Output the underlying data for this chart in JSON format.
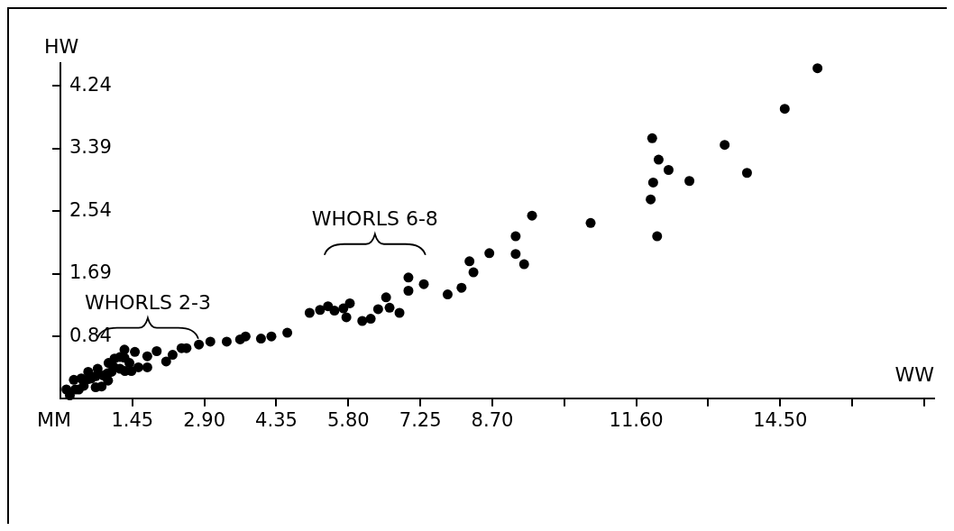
{
  "chart_data": {
    "type": "scatter",
    "xlabel": "WW",
    "ylabel": "HW",
    "color": "#000000",
    "marker": "circle",
    "grid": false,
    "legend": false,
    "xlim": [
      0,
      17.6
    ],
    "ylim": [
      0,
      4.55
    ],
    "xticks": [
      {
        "value": 1.45,
        "label": "1.45"
      },
      {
        "value": 2.9,
        "label": "2.90"
      },
      {
        "value": 4.35,
        "label": "4.35"
      },
      {
        "value": 5.8,
        "label": "5.80"
      },
      {
        "value": 7.25,
        "label": "7.25"
      },
      {
        "value": 8.7,
        "label": "8.70"
      },
      {
        "value": 10.15,
        "label": null
      },
      {
        "value": 11.6,
        "label": "11.60"
      },
      {
        "value": 13.05,
        "label": null
      },
      {
        "value": 14.5,
        "label": "14.50"
      },
      {
        "value": 15.95,
        "label": null
      },
      {
        "value": 17.4,
        "label": null
      }
    ],
    "yticks": [
      0.84,
      1.69,
      2.54,
      3.39,
      4.24
    ],
    "x": [
      0.12,
      0.19,
      0.27,
      0.3,
      0.37,
      0.42,
      0.47,
      0.56,
      0.56,
      0.62,
      0.71,
      0.71,
      0.75,
      0.83,
      0.86,
      0.96,
      0.95,
      0.97,
      1.03,
      1.08,
      1.09,
      1.2,
      1.2,
      1.29,
      1.29,
      1.3,
      1.39,
      1.43,
      1.5,
      1.57,
      1.75,
      1.75,
      1.94,
      2.13,
      2.26,
      2.44,
      2.54,
      2.79,
      3.02,
      3.35,
      3.62,
      3.73,
      4.04,
      4.25,
      4.57,
      5.02,
      5.23,
      5.39,
      5.52,
      5.7,
      5.83,
      5.76,
      6.08,
      6.25,
      6.4,
      6.56,
      6.63,
      6.83,
      7.01,
      7.01,
      7.32,
      7.8,
      8.08,
      8.32,
      8.24,
      8.64,
      9.17,
      9.17,
      9.34,
      9.5,
      10.68,
      11.92,
      12.05,
      12.25,
      11.94,
      11.89,
      12.02,
      12.67,
      13.38,
      13.83,
      14.59,
      15.25
    ],
    "values": [
      0.12,
      0.04,
      0.25,
      0.12,
      0.12,
      0.27,
      0.17,
      0.36,
      0.26,
      0.27,
      0.3,
      0.15,
      0.4,
      0.16,
      0.31,
      0.24,
      0.34,
      0.48,
      0.36,
      0.42,
      0.54,
      0.56,
      0.4,
      0.66,
      0.55,
      0.37,
      0.48,
      0.37,
      0.63,
      0.42,
      0.57,
      0.42,
      0.64,
      0.5,
      0.59,
      0.68,
      0.68,
      0.73,
      0.77,
      0.77,
      0.8,
      0.84,
      0.81,
      0.84,
      0.89,
      1.16,
      1.2,
      1.25,
      1.19,
      1.22,
      1.29,
      1.1,
      1.05,
      1.08,
      1.21,
      1.37,
      1.23,
      1.16,
      1.64,
      1.46,
      1.55,
      1.41,
      1.5,
      1.71,
      1.86,
      1.97,
      2.2,
      1.96,
      1.82,
      2.48,
      2.38,
      3.53,
      3.24,
      3.1,
      2.93,
      2.7,
      2.2,
      2.95,
      3.44,
      3.06,
      3.93,
      4.48
    ],
    "annotations": [
      "WHORLS 2-3",
      "WHORLS 6-8",
      "MM"
    ]
  }
}
